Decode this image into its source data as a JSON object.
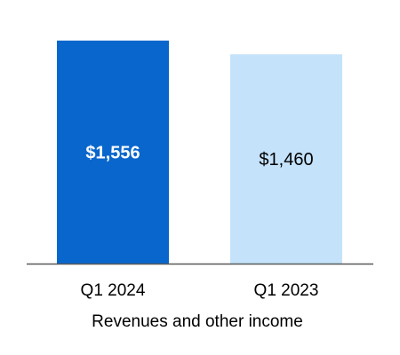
{
  "chart_data": {
    "type": "bar",
    "categories": [
      "Q1 2024",
      "Q1 2023"
    ],
    "values": [
      1556,
      1460
    ],
    "value_labels": [
      "$1,556",
      "$1,460"
    ],
    "xlabel": "Revenues and other income",
    "ylabel": "",
    "ylim": [
      0,
      1610
    ],
    "grid": false,
    "legend": "none",
    "colors": [
      "#0966CC",
      "#C4E2FA"
    ],
    "value_label_colors": [
      "#FFFFFF",
      "#000000"
    ],
    "value_label_bold": [
      true,
      false
    ],
    "axis_line_color": "#595959"
  }
}
